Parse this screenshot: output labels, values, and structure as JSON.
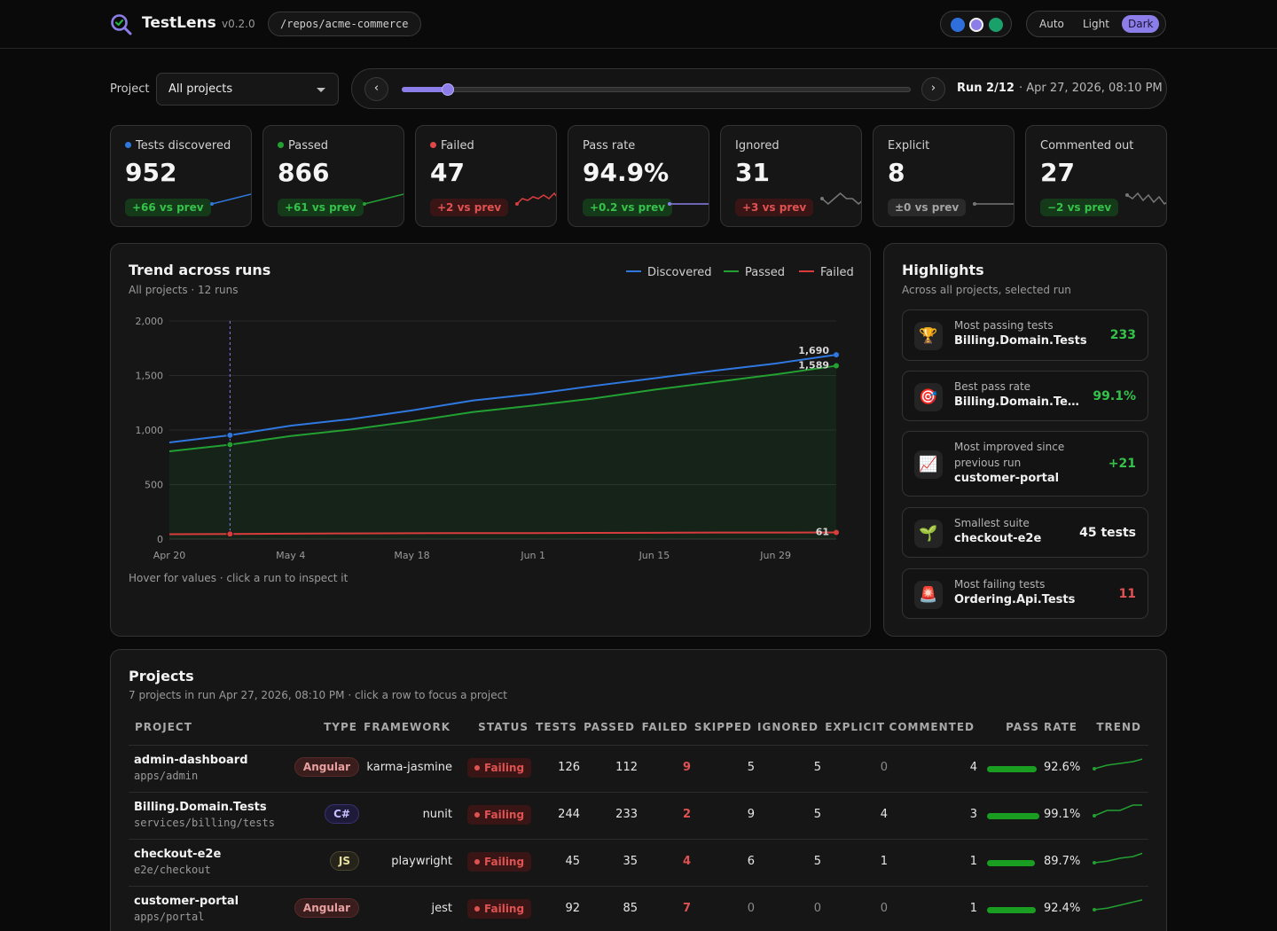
{
  "app": {
    "title": "TestLens",
    "version": "v0.2.0",
    "repo_path": "/repos/acme-commerce"
  },
  "theme": {
    "swatch_colors": [
      "#2f6fdb",
      "#8b7ee8",
      "#1aa06a"
    ],
    "options": [
      "Auto",
      "Light",
      "Dark"
    ],
    "selected": "Dark"
  },
  "filters": {
    "project_label": "Project",
    "project_value": "All projects",
    "run_label": "Run 2/12",
    "run_date": "· Apr 27, 2026, 08:10 PM",
    "run_index": 2,
    "run_total": 12,
    "prev_icon": "‹",
    "next_icon": "›"
  },
  "stats": [
    {
      "label": "Tests discovered",
      "value": "952",
      "delta": "+66 vs prev",
      "tone": "green",
      "dot": "#2f78e0",
      "spark": [
        0,
        4,
        8
      ],
      "spark_color": "#2f78e0"
    },
    {
      "label": "Passed",
      "value": "866",
      "delta": "+61 vs prev",
      "tone": "green",
      "dot": "#22a032",
      "spark": [
        0,
        4,
        8
      ],
      "spark_color": "#22a032"
    },
    {
      "label": "Failed",
      "value": "47",
      "delta": "+2 vs prev",
      "tone": "red",
      "dot": "#e04848",
      "spark": [
        0,
        3,
        2,
        4,
        3,
        5,
        3,
        6,
        2
      ],
      "spark_color": "#d93c3c"
    },
    {
      "label": "Pass rate",
      "value": "94.9%",
      "delta": "+0.2 vs prev",
      "tone": "green",
      "dot": null,
      "spark": [
        5,
        5,
        5
      ],
      "spark_color": "#8b7ee8"
    },
    {
      "label": "Ignored",
      "value": "31",
      "delta": "+3 vs prev",
      "tone": "red",
      "dot": null,
      "spark": [
        5,
        4,
        5,
        6,
        5,
        5,
        4,
        5
      ],
      "spark_color": "#777777"
    },
    {
      "label": "Explicit",
      "value": "8",
      "delta": "±0 vs prev",
      "tone": "grey",
      "dot": null,
      "spark": [
        5,
        5,
        5
      ],
      "spark_color": "#777777"
    },
    {
      "label": "Commented out",
      "value": "27",
      "delta": "−2 vs prev",
      "tone": "green",
      "dot": null,
      "spark": [
        6,
        4,
        7,
        3,
        6,
        2,
        5,
        1,
        3
      ],
      "spark_color": "#777777"
    }
  ],
  "trend": {
    "title": "Trend across runs",
    "subtitle": "All projects · 12 runs",
    "hint": "Hover for values · click a run to inspect it",
    "legend": [
      {
        "name": "Discovered",
        "color": "#2f78e0"
      },
      {
        "name": "Passed",
        "color": "#22a032"
      },
      {
        "name": "Failed",
        "color": "#d93c3c"
      }
    ]
  },
  "chart_data": {
    "type": "line",
    "title": "Trend across runs",
    "x_tick_labels": [
      "Apr 20",
      "May 4",
      "May 18",
      "Jun 1",
      "Jun 15",
      "Jun 29"
    ],
    "ylim": [
      0,
      2000
    ],
    "y_ticks": [
      0,
      500,
      1000,
      1500,
      2000
    ],
    "y_tick_labels": [
      "0",
      "500",
      "1,000",
      "1,500",
      "2,000"
    ],
    "selected_run": 2,
    "series": [
      {
        "name": "Discovered",
        "color": "#2f78e0",
        "values": [
          886,
          952,
          1040,
          1101,
          1180,
          1270,
          1330,
          1405,
          1475,
          1545,
          1610,
          1690
        ],
        "end_label": "1,690"
      },
      {
        "name": "Passed",
        "color": "#22a032",
        "values": [
          805,
          866,
          945,
          1005,
          1080,
          1165,
          1225,
          1290,
          1370,
          1440,
          1510,
          1589
        ],
        "end_label": "1,589"
      },
      {
        "name": "Failed",
        "color": "#d93c3c",
        "values": [
          45,
          47,
          50,
          52,
          54,
          55,
          55,
          57,
          58,
          60,
          60,
          61
        ],
        "end_label": "61"
      }
    ],
    "grid": true,
    "legend": "top-right",
    "area_fill": "Passed"
  },
  "highlights": {
    "title": "Highlights",
    "subtitle": "Across all projects, selected run",
    "items": [
      {
        "icon": "trophy-icon",
        "glyph": "🏆",
        "label": "Most passing tests",
        "name": "Billing.Domain.Tests",
        "value": "233",
        "color": "#35c24a"
      },
      {
        "icon": "target-icon",
        "glyph": "🎯",
        "label": "Best pass rate",
        "name": "Billing.Domain.Te…",
        "value": "99.1%",
        "color": "#35c24a"
      },
      {
        "icon": "chart-up-icon",
        "glyph": "📈",
        "label": "Most improved since previous run",
        "name": "customer-portal",
        "value": "+21",
        "color": "#35c24a"
      },
      {
        "icon": "seedling-icon",
        "glyph": "🌱",
        "label": "Smallest suite",
        "name": "checkout-e2e",
        "value": "45 tests",
        "color": "#f2f2f2"
      },
      {
        "icon": "siren-icon",
        "glyph": "🚨",
        "label": "Most failing tests",
        "name": "Ordering.Api.Tests",
        "value": "11",
        "color": "#e05252"
      }
    ]
  },
  "projects": {
    "title": "Projects",
    "subtitle": "7 projects in run Apr 27, 2026, 08:10 PM · click a row to focus a project",
    "columns": [
      "PROJECT",
      "TYPE",
      "FRAMEWORK",
      "STATUS",
      "TESTS",
      "PASSED",
      "FAILED",
      "SKIPPED",
      "IGNORED",
      "EXPLICIT",
      "COMMENTED",
      "PASS RATE",
      "TREND"
    ],
    "rows": [
      {
        "name": "admin-dashboard",
        "path": "apps/admin",
        "type": "Angular",
        "type_tone": "angular",
        "framework": "karma-jasmine",
        "status": "Failing",
        "tests": "126",
        "passed": "112",
        "failed": "9",
        "skipped": "5",
        "ignored": "5",
        "explicit": "0",
        "commented": "4",
        "pass_rate": "92.6%",
        "rate": 0.926,
        "trend": [
          3,
          5,
          6,
          7,
          9
        ]
      },
      {
        "name": "Billing.Domain.Tests",
        "path": "services/billing/tests",
        "type": "C#",
        "type_tone": "csharp",
        "framework": "nunit",
        "status": "Failing",
        "tests": "244",
        "passed": "233",
        "failed": "2",
        "skipped": "9",
        "ignored": "5",
        "explicit": "4",
        "commented": "3",
        "pass_rate": "99.1%",
        "rate": 0.991,
        "trend": [
          5,
          6,
          6,
          7,
          7
        ]
      },
      {
        "name": "checkout-e2e",
        "path": "e2e/checkout",
        "type": "JS",
        "type_tone": "js",
        "framework": "playwright",
        "status": "Failing",
        "tests": "45",
        "passed": "35",
        "failed": "4",
        "skipped": "6",
        "ignored": "5",
        "explicit": "1",
        "commented": "1",
        "pass_rate": "89.7%",
        "rate": 0.897,
        "trend": [
          2,
          3,
          5,
          6,
          9
        ]
      },
      {
        "name": "customer-portal",
        "path": "apps/portal",
        "type": "Angular",
        "type_tone": "angular",
        "framework": "jest",
        "status": "Failing",
        "tests": "92",
        "passed": "85",
        "failed": "7",
        "skipped": "0",
        "ignored": "0",
        "explicit": "0",
        "commented": "1",
        "pass_rate": "92.4%",
        "rate": 0.924,
        "trend": [
          2,
          3,
          5,
          7,
          9
        ]
      }
    ]
  }
}
